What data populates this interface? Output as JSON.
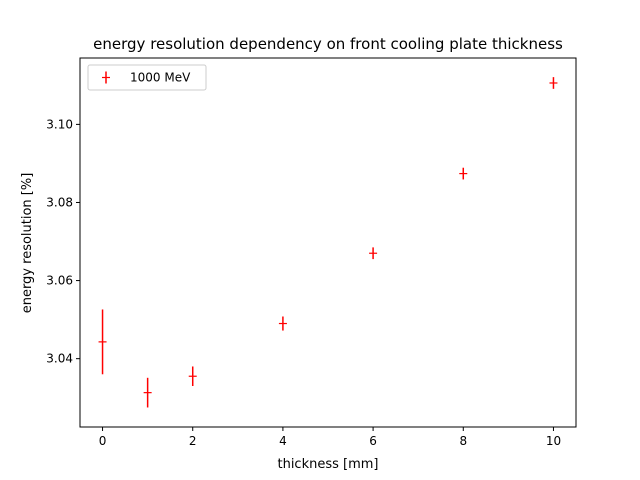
{
  "chart_data": {
    "type": "scatter",
    "title": "energy resolution dependency on front cooling plate thickness",
    "xlabel": "thickness [mm]",
    "ylabel": "energy resolution [%]",
    "xlim": [
      -0.5,
      10.5
    ],
    "ylim": [
      3.0225,
      3.117
    ],
    "xticks": [
      0,
      2,
      4,
      6,
      8,
      10
    ],
    "xtick_labels": [
      "0",
      "2",
      "4",
      "6",
      "8",
      "10"
    ],
    "yticks": [
      3.04,
      3.06,
      3.08,
      3.1
    ],
    "ytick_labels": [
      "3.04",
      "3.06",
      "3.08",
      "3.10"
    ],
    "grid": false,
    "legend_position": "top-left",
    "series": [
      {
        "name": "1000 MeV",
        "color": "#ff0000",
        "marker": "plus",
        "x": [
          0,
          1,
          2,
          4,
          6,
          8,
          10
        ],
        "y": [
          3.0443,
          3.0313,
          3.0355,
          3.049,
          3.067,
          3.0874,
          3.1106
        ],
        "yerr": [
          0.0083,
          0.0038,
          0.0025,
          0.0018,
          0.0015,
          0.0015,
          0.0015
        ]
      }
    ]
  }
}
